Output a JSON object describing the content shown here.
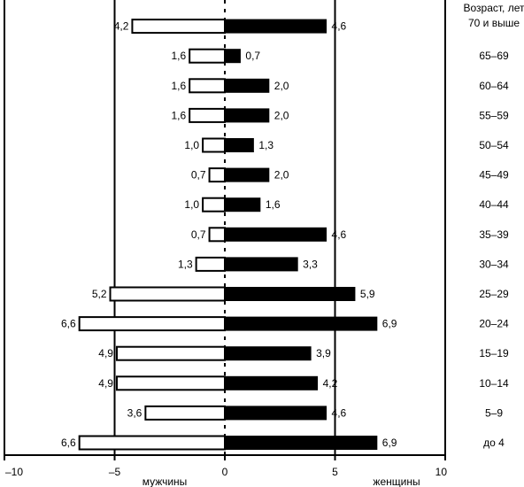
{
  "chart_data": {
    "type": "bar",
    "orientation": "horizontal",
    "chart_style": "population pyramid",
    "categories": [
      "до 4",
      "5–9",
      "10–14",
      "15–19",
      "20–24",
      "25–29",
      "30–34",
      "35–39",
      "40–44",
      "45–49",
      "50–54",
      "55–59",
      "60–64",
      "65–69",
      "70 и выше"
    ],
    "axis_title_line1": "Возраст, лет",
    "series": [
      {
        "name": "мужчины",
        "color": "#ffffff",
        "values": [
          6.6,
          3.6,
          4.9,
          4.9,
          6.6,
          5.2,
          1.3,
          0.7,
          1.0,
          0.7,
          1.0,
          1.6,
          1.6,
          1.6,
          4.2
        ],
        "labels": [
          "6,6",
          "3,6",
          "4,9",
          "4,9",
          "6,6",
          "5,2",
          "1,3",
          "0,7",
          "1,0",
          "0,7",
          "1,0",
          "1,6",
          "1,6",
          "1,6",
          "4,2"
        ]
      },
      {
        "name": "женщины",
        "color": "#000000",
        "values": [
          6.9,
          4.6,
          4.2,
          3.9,
          6.9,
          5.9,
          3.3,
          4.6,
          1.6,
          2.0,
          1.3,
          2.0,
          2.0,
          0.7,
          4.6
        ],
        "labels": [
          "6,9",
          "4,6",
          "4,2",
          "3,9",
          "6,9",
          "5,9",
          "3,3",
          "4,6",
          "1,6",
          "2,0",
          "1,3",
          "2,0",
          "2,0",
          "0,7",
          "4,6"
        ]
      }
    ],
    "xlim": [
      -10,
      10
    ],
    "xticks": [
      -10,
      -5,
      0,
      5,
      10
    ],
    "xtick_labels": [
      "–10",
      "–5",
      "0",
      "5",
      "10"
    ],
    "vertical_lines_at": [
      -5,
      5
    ],
    "grid": false,
    "legend": "none"
  }
}
